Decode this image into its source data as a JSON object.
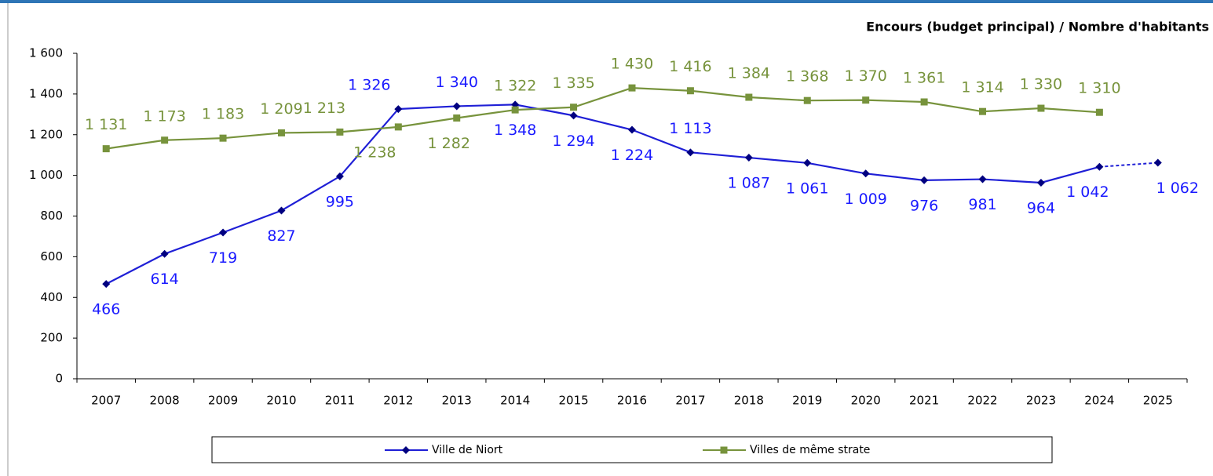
{
  "chart_data": {
    "type": "line",
    "title": "Encours (budget principal) / Nombre d'habitants",
    "categories": [
      "2007",
      "2008",
      "2009",
      "2010",
      "2011",
      "2012",
      "2013",
      "2014",
      "2015",
      "2016",
      "2017",
      "2018",
      "2019",
      "2020",
      "2021",
      "2022",
      "2023",
      "2024",
      "2025"
    ],
    "series": [
      {
        "name": "Ville de Niort",
        "color": "#1f1fd6",
        "marker_color": "#000080",
        "marker": "diamond",
        "label_color": "#1a1aff",
        "dashed_last_segment": true,
        "values": [
          466,
          614,
          719,
          827,
          995,
          1326,
          1340,
          1348,
          1294,
          1224,
          1113,
          1087,
          1061,
          1009,
          976,
          981,
          964,
          1042,
          1062
        ],
        "value_labels": [
          "466",
          "614",
          "719",
          "827",
          "995",
          "1 326",
          "1 340",
          "1 348",
          "1 294",
          "1 224",
          "1 113",
          "1 087",
          "1 061",
          "1 009",
          "976",
          "981",
          "964",
          "1 042",
          "1 062"
        ]
      },
      {
        "name": "Villes de même strate",
        "color": "#77933c",
        "marker_color": "#77933c",
        "marker": "square",
        "label_color": "#77933c",
        "dashed_last_segment": false,
        "values": [
          1131,
          1173,
          1183,
          1209,
          1213,
          1238,
          1282,
          1322,
          1335,
          1430,
          1416,
          1384,
          1368,
          1370,
          1361,
          1314,
          1330,
          1310,
          null
        ],
        "value_labels": [
          "1 131",
          "1 173",
          "1 183",
          "1 209",
          "1 213",
          "1 238",
          "1 282",
          "1 322",
          "1 335",
          "1 430",
          "1 416",
          "1 384",
          "1 368",
          "1 370",
          "1 361",
          "1 314",
          "1 330",
          "1 310",
          null
        ]
      }
    ],
    "ylim": [
      0,
      1600
    ],
    "yticks": [
      0,
      200,
      400,
      600,
      800,
      {
        "value": 1000,
        "label": "1 000"
      },
      {
        "value": 1200,
        "label": "1 200"
      },
      {
        "value": 1400,
        "label": "1 400"
      },
      {
        "value": 1600,
        "label": "1 600"
      }
    ],
    "grid": false,
    "legend": "bottom"
  }
}
